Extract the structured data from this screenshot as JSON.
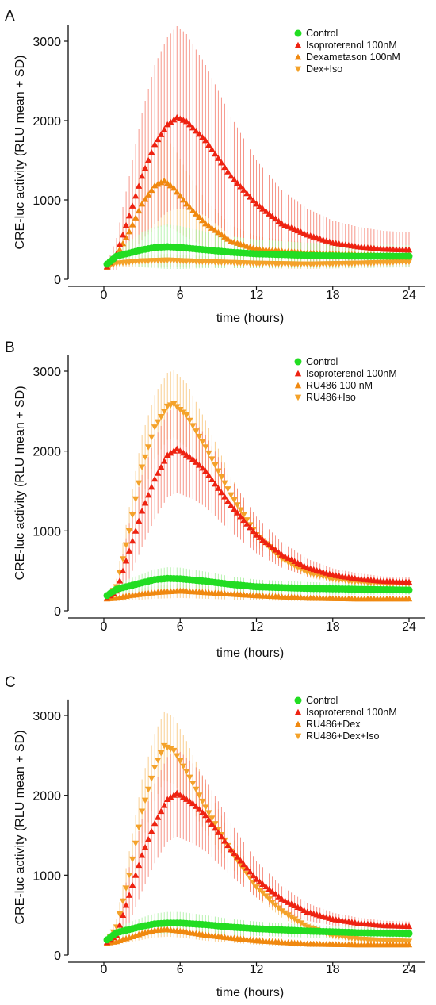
{
  "chart_data": [
    {
      "panel": "A",
      "type": "line",
      "xlabel": "time (hours)",
      "ylabel": "CRE-luc activity (RLU mean + SD)",
      "xlim": [
        -2,
        25
      ],
      "ylim": [
        0,
        3200
      ],
      "xticks": [
        "0",
        "6",
        "12",
        "18",
        "24"
      ],
      "yticks": [
        "0",
        "1000",
        "2000",
        "3000"
      ],
      "legend_position": "top-right",
      "series": [
        {
          "name": "Control",
          "marker": "circle",
          "color": "#22dd22",
          "errcolor": "#a4ee9a",
          "points": [
            [
              0.25,
              190,
              50
            ],
            [
              1,
              290,
              90
            ],
            [
              2,
              330,
              150
            ],
            [
              3,
              370,
              220
            ],
            [
              4,
              400,
              260
            ],
            [
              5,
              410,
              280
            ],
            [
              6,
              400,
              270
            ],
            [
              8,
              370,
              230
            ],
            [
              10,
              340,
              200
            ],
            [
              12,
              320,
              180
            ],
            [
              16,
              300,
              160
            ],
            [
              20,
              290,
              150
            ],
            [
              24,
              290,
              140
            ]
          ]
        },
        {
          "name": "Isoproterenol 100nM",
          "marker": "triangle-up",
          "color": "#ee2211",
          "errcolor": "#f57766",
          "points": [
            [
              0.25,
              160,
              40
            ],
            [
              1,
              320,
              200
            ],
            [
              2,
              800,
              500
            ],
            [
              3,
              1300,
              800
            ],
            [
              4,
              1700,
              1000
            ],
            [
              5,
              1950,
              1100
            ],
            [
              5.75,
              2040,
              1150
            ],
            [
              6.5,
              1990,
              1100
            ],
            [
              8,
              1750,
              950
            ],
            [
              10,
              1300,
              750
            ],
            [
              12,
              950,
              550
            ],
            [
              14,
              700,
              420
            ],
            [
              16,
              560,
              330
            ],
            [
              18,
              460,
              280
            ],
            [
              20,
              410,
              250
            ],
            [
              22,
              380,
              230
            ],
            [
              24,
              370,
              220
            ]
          ]
        },
        {
          "name": "Dexametason 100nM",
          "marker": "triangle-up",
          "color": "#f0880f",
          "errcolor": "#f7c070",
          "points": [
            [
              0.25,
              150,
              40
            ],
            [
              1,
              300,
              150
            ],
            [
              2,
              600,
              300
            ],
            [
              3,
              950,
              450
            ],
            [
              4,
              1180,
              550
            ],
            [
              4.75,
              1240,
              560
            ],
            [
              5.5,
              1150,
              520
            ],
            [
              6.5,
              950,
              420
            ],
            [
              8,
              700,
              300
            ],
            [
              10,
              480,
              200
            ],
            [
              12,
              380,
              160
            ],
            [
              16,
              330,
              130
            ],
            [
              20,
              310,
              110
            ],
            [
              24,
              300,
              100
            ]
          ]
        },
        {
          "name": "Dex+Iso",
          "marker": "triangle-down",
          "color": "#f4a22a",
          "errcolor": "#f7c070",
          "points": [
            [
              0.25,
              160,
              30
            ],
            [
              1,
              200,
              50
            ],
            [
              3,
              230,
              70
            ],
            [
              5,
              240,
              80
            ],
            [
              8,
              220,
              70
            ],
            [
              12,
              200,
              60
            ],
            [
              16,
              190,
              60
            ],
            [
              20,
              200,
              60
            ],
            [
              24,
              220,
              60
            ]
          ]
        }
      ]
    },
    {
      "panel": "B",
      "type": "line",
      "xlabel": "time (hours)",
      "ylabel": "CRE-luc activity (RLU mean + SD)",
      "xlim": [
        -2,
        25
      ],
      "ylim": [
        0,
        3200
      ],
      "xticks": [
        "0",
        "6",
        "12",
        "18",
        "24"
      ],
      "yticks": [
        "0",
        "1000",
        "2000",
        "3000"
      ],
      "legend_position": "top-right",
      "series": [
        {
          "name": "Control",
          "marker": "circle",
          "color": "#22dd22",
          "errcolor": "#a4ee9a",
          "points": [
            [
              0.25,
              190,
              50
            ],
            [
              1,
              270,
              70
            ],
            [
              2,
              310,
              90
            ],
            [
              3,
              350,
              110
            ],
            [
              4,
              390,
              130
            ],
            [
              5,
              405,
              140
            ],
            [
              6,
              400,
              140
            ],
            [
              8,
              370,
              120
            ],
            [
              10,
              330,
              100
            ],
            [
              12,
              300,
              90
            ],
            [
              16,
              280,
              80
            ],
            [
              20,
              270,
              70
            ],
            [
              24,
              260,
              60
            ]
          ]
        },
        {
          "name": "Isoproterenol 100nM",
          "marker": "triangle-up",
          "color": "#ee2211",
          "errcolor": "#f57766",
          "points": [
            [
              0.25,
              160,
              30
            ],
            [
              1,
              250,
              80
            ],
            [
              2,
              750,
              350
            ],
            [
              3,
              1250,
              450
            ],
            [
              4,
              1650,
              500
            ],
            [
              5,
              1950,
              530
            ],
            [
              5.75,
              2030,
              550
            ],
            [
              7,
              1900,
              500
            ],
            [
              8,
              1750,
              450
            ],
            [
              10,
              1320,
              330
            ],
            [
              12,
              950,
              230
            ],
            [
              14,
              700,
              160
            ],
            [
              16,
              540,
              110
            ],
            [
              18,
              450,
              80
            ],
            [
              20,
              400,
              70
            ],
            [
              22,
              370,
              60
            ],
            [
              24,
              360,
              60
            ]
          ]
        },
        {
          "name": "RU486 100 nM",
          "marker": "triangle-up",
          "color": "#f0880f",
          "errcolor": "#f7c070",
          "points": [
            [
              0.25,
              150,
              30
            ],
            [
              1,
              160,
              40
            ],
            [
              2,
              190,
              60
            ],
            [
              4,
              230,
              80
            ],
            [
              6,
              250,
              90
            ],
            [
              8,
              230,
              80
            ],
            [
              12,
              190,
              60
            ],
            [
              16,
              160,
              40
            ],
            [
              20,
              150,
              30
            ],
            [
              24,
              150,
              30
            ]
          ]
        },
        {
          "name": "RU486+Iso",
          "marker": "triangle-down",
          "color": "#f4a22a",
          "errcolor": "#f7c070",
          "points": [
            [
              0.25,
              160,
              30
            ],
            [
              1,
              300,
              100
            ],
            [
              2,
              1000,
              300
            ],
            [
              3,
              1800,
              400
            ],
            [
              4,
              2300,
              400
            ],
            [
              5,
              2560,
              420
            ],
            [
              5.5,
              2590,
              420
            ],
            [
              6.5,
              2450,
              400
            ],
            [
              8,
              2050,
              330
            ],
            [
              10,
              1450,
              230
            ],
            [
              12,
              950,
              140
            ],
            [
              14,
              650,
              90
            ],
            [
              16,
              480,
              60
            ],
            [
              18,
              400,
              50
            ],
            [
              20,
              360,
              40
            ],
            [
              22,
              340,
              40
            ],
            [
              24,
              340,
              40
            ]
          ]
        }
      ]
    },
    {
      "panel": "C",
      "type": "line",
      "xlabel": "time (hours)",
      "ylabel": "CRE-luc activity (RLU mean + SD)",
      "xlim": [
        -2,
        25
      ],
      "ylim": [
        0,
        3200
      ],
      "xticks": [
        "0",
        "6",
        "12",
        "18",
        "24"
      ],
      "yticks": [
        "0",
        "1000",
        "2000",
        "3000"
      ],
      "legend_position": "top-right",
      "series": [
        {
          "name": "Control",
          "marker": "circle",
          "color": "#22dd22",
          "errcolor": "#a4ee9a",
          "points": [
            [
              0.25,
              190,
              50
            ],
            [
              1,
              280,
              70
            ],
            [
              2,
              320,
              90
            ],
            [
              3,
              360,
              110
            ],
            [
              4,
              390,
              130
            ],
            [
              5,
              400,
              140
            ],
            [
              6,
              400,
              140
            ],
            [
              8,
              380,
              120
            ],
            [
              10,
              350,
              100
            ],
            [
              12,
              330,
              90
            ],
            [
              16,
              300,
              80
            ],
            [
              20,
              280,
              70
            ],
            [
              24,
              270,
              60
            ]
          ]
        },
        {
          "name": "Isoproterenol 100nM",
          "marker": "triangle-up",
          "color": "#ee2211",
          "errcolor": "#f57766",
          "points": [
            [
              0.25,
              160,
              30
            ],
            [
              1,
              250,
              80
            ],
            [
              2,
              750,
              350
            ],
            [
              3,
              1250,
              450
            ],
            [
              4,
              1650,
              500
            ],
            [
              5,
              1950,
              530
            ],
            [
              5.75,
              2030,
              550
            ],
            [
              7,
              1900,
              500
            ],
            [
              8,
              1750,
              450
            ],
            [
              10,
              1320,
              330
            ],
            [
              12,
              950,
              230
            ],
            [
              14,
              700,
              160
            ],
            [
              16,
              540,
              110
            ],
            [
              18,
              450,
              80
            ],
            [
              20,
              400,
              70
            ],
            [
              22,
              370,
              60
            ],
            [
              24,
              360,
              60
            ]
          ]
        },
        {
          "name": "RU486+Dex",
          "marker": "triangle-up",
          "color": "#f0880f",
          "errcolor": "#f7c070",
          "points": [
            [
              0.25,
              150,
              30
            ],
            [
              1,
              170,
              40
            ],
            [
              2,
              220,
              60
            ],
            [
              3,
              270,
              80
            ],
            [
              4,
              310,
              90
            ],
            [
              5,
              320,
              90
            ],
            [
              6,
              300,
              80
            ],
            [
              8,
              250,
              70
            ],
            [
              12,
              180,
              50
            ],
            [
              16,
              140,
              40
            ],
            [
              20,
              130,
              30
            ],
            [
              24,
              130,
              30
            ]
          ]
        },
        {
          "name": "RU486+Dex+Iso",
          "marker": "triangle-down",
          "color": "#f4a22a",
          "errcolor": "#f7c070",
          "points": [
            [
              0.25,
              160,
              30
            ],
            [
              1,
              350,
              100
            ],
            [
              2,
              1000,
              300
            ],
            [
              3,
              1800,
              400
            ],
            [
              4,
              2350,
              420
            ],
            [
              4.75,
              2620,
              430
            ],
            [
              5.5,
              2560,
              420
            ],
            [
              6.5,
              2300,
              380
            ],
            [
              8,
              1850,
              300
            ],
            [
              10,
              1300,
              200
            ],
            [
              12,
              850,
              130
            ],
            [
              14,
              550,
              80
            ],
            [
              16,
              350,
              60
            ],
            [
              18,
              250,
              50
            ],
            [
              20,
              200,
              40
            ],
            [
              22,
              180,
              40
            ],
            [
              24,
              170,
              40
            ]
          ]
        }
      ]
    }
  ]
}
